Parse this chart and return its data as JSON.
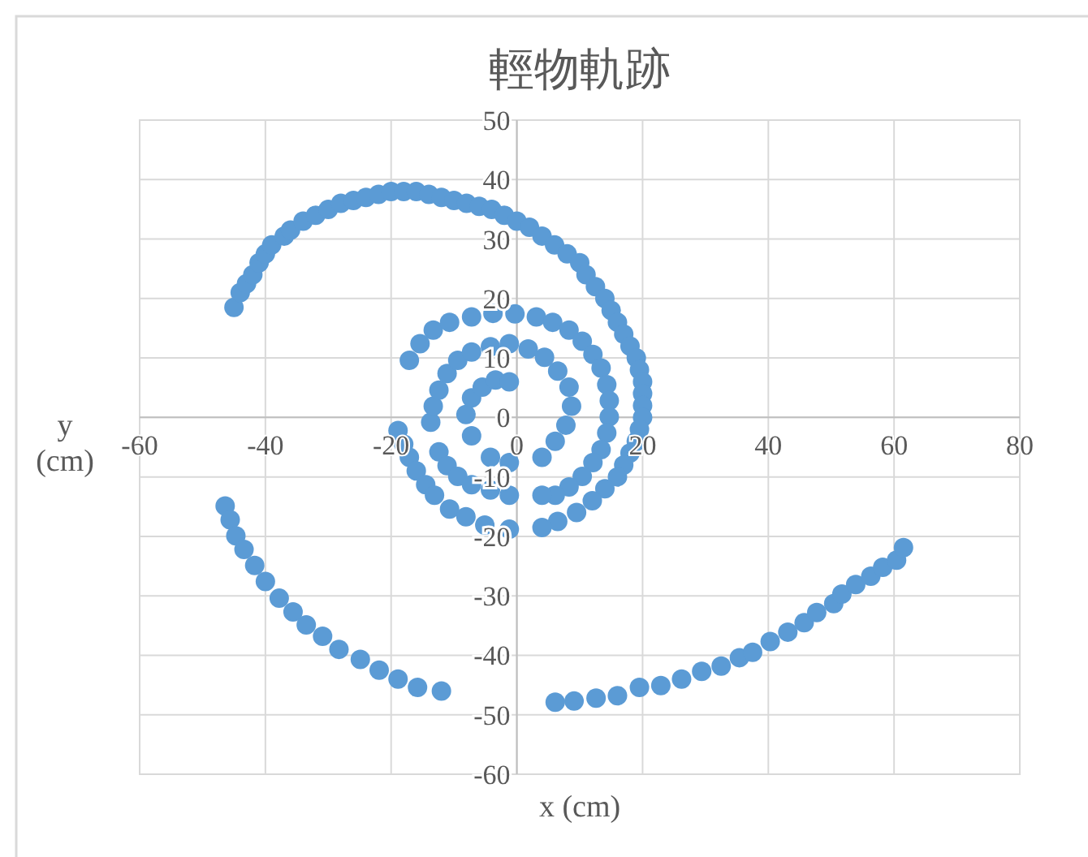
{
  "chart_data": {
    "type": "scatter",
    "title": "輕物軌跡",
    "xlabel": "x (cm)",
    "ylabel": "y (cm)",
    "color": "#5b9bd5",
    "marker": "circle",
    "grid": true,
    "xlim": [
      -60,
      80
    ],
    "ylim": [
      -60,
      50
    ],
    "xticks": [
      -60,
      -40,
      -20,
      0,
      20,
      40,
      60,
      80
    ],
    "yticks": [
      -60,
      -50,
      -40,
      -30,
      -20,
      -10,
      0,
      10,
      20,
      30,
      40,
      50
    ],
    "x": [
      -45,
      -44,
      -43,
      -42,
      -41,
      -40,
      -39,
      -37,
      -36,
      -34,
      -32,
      -30,
      -28,
      -26,
      -24,
      -22,
      -20,
      -18,
      -16,
      -14,
      -12,
      -10,
      -8,
      -6,
      -4,
      -2,
      0,
      2,
      4,
      6,
      8,
      10,
      11,
      12.5,
      14,
      15,
      16,
      17,
      18,
      19,
      19.5,
      20,
      20,
      20,
      20,
      19.5,
      19,
      18,
      17,
      16,
      14,
      12,
      9.5,
      6.5,
      4,
      -18.9,
      -18,
      -17.1,
      -16,
      -14.5,
      -13.1,
      -10.7,
      -8.1,
      -5.1,
      -1.2,
      -17.1,
      -15.4,
      -13.3,
      -10.7,
      -7.2,
      -3.8,
      -0.3,
      3.1,
      5.7,
      8.3,
      10.4,
      12.1,
      13.4,
      14.3,
      14.7,
      14.7,
      14.3,
      13.4,
      12.1,
      10.4,
      8.3,
      6.1,
      4,
      -12.4,
      -11.1,
      -9.4,
      -7.2,
      -4.2,
      -1.2,
      -13.7,
      -13.3,
      -12.4,
      -11.1,
      -9.4,
      -7.2,
      -4.2,
      -1.2,
      1.8,
      4.4,
      6.5,
      8.3,
      8.7,
      7.8,
      6.1,
      4,
      -7.2,
      -8.1,
      -7.2,
      -5.5,
      -3.4,
      -1.2,
      -4.2,
      -1.2,
      -46.4,
      -45.6,
      -44.7,
      -43.4,
      -41.7,
      -40,
      -37.8,
      -35.6,
      -33.5,
      -30.9,
      -28.3,
      -24.9,
      -21.9,
      -18.9,
      -15.8,
      -12,
      6.1,
      9.1,
      12.6,
      16,
      19.5,
      22.9,
      26.2,
      29.4,
      32.5,
      35.4,
      37.5,
      40.3,
      43.1,
      45.7,
      47.7,
      50.4,
      51.7,
      53.9,
      56.3,
      58.2,
      60.4,
      61.5
    ],
    "values": [
      18.5,
      21,
      22.5,
      24,
      26,
      27.5,
      29,
      30.5,
      31.5,
      33,
      34,
      35,
      36,
      36.5,
      37,
      37.5,
      38,
      38,
      38,
      37.5,
      37,
      36.5,
      36,
      35.5,
      35,
      34,
      33,
      32,
      30.5,
      29,
      27.5,
      26,
      24,
      22,
      20,
      18,
      16,
      14,
      12,
      10,
      8,
      6,
      4,
      2,
      0,
      -2,
      -4,
      -6,
      -8,
      -10,
      -12,
      -14,
      -16,
      -17.5,
      -18.5,
      -2.2,
      -4.5,
      -6.7,
      -9,
      -11.3,
      -13.1,
      -15.4,
      -16.7,
      -18.1,
      -18.8,
      9.6,
      12.4,
      14.7,
      16,
      16.9,
      17.5,
      17.4,
      16.9,
      16,
      14.7,
      12.8,
      10.6,
      8.3,
      5.5,
      2.8,
      0.1,
      -2.6,
      -5.4,
      -7.6,
      -9.9,
      -11.7,
      -13.1,
      -13.1,
      -5.8,
      -8.1,
      -9.9,
      -11.3,
      -12.2,
      -13.1,
      -0.8,
      1.9,
      4.6,
      7.4,
      9.6,
      11,
      11.9,
      12.4,
      11.5,
      10.1,
      7.8,
      5.1,
      1.9,
      -1.3,
      -4,
      -6.7,
      -3.1,
      0.5,
      3.3,
      5.1,
      6.3,
      6,
      -6.7,
      -7.6,
      -14.9,
      -17.2,
      -19.9,
      -22.2,
      -24.9,
      -27.6,
      -30.4,
      -32.7,
      -34.9,
      -36.8,
      -39,
      -40.7,
      -42.5,
      -44,
      -45.4,
      -46,
      -47.9,
      -47.7,
      -47.2,
      -46.8,
      -45.4,
      -45.1,
      -44,
      -42.7,
      -41.8,
      -40.4,
      -39.5,
      -37.7,
      -36.1,
      -34.5,
      -32.8,
      -31.3,
      -29.7,
      -28.1,
      -26.7,
      -25.2,
      -24,
      -21.9
    ]
  }
}
